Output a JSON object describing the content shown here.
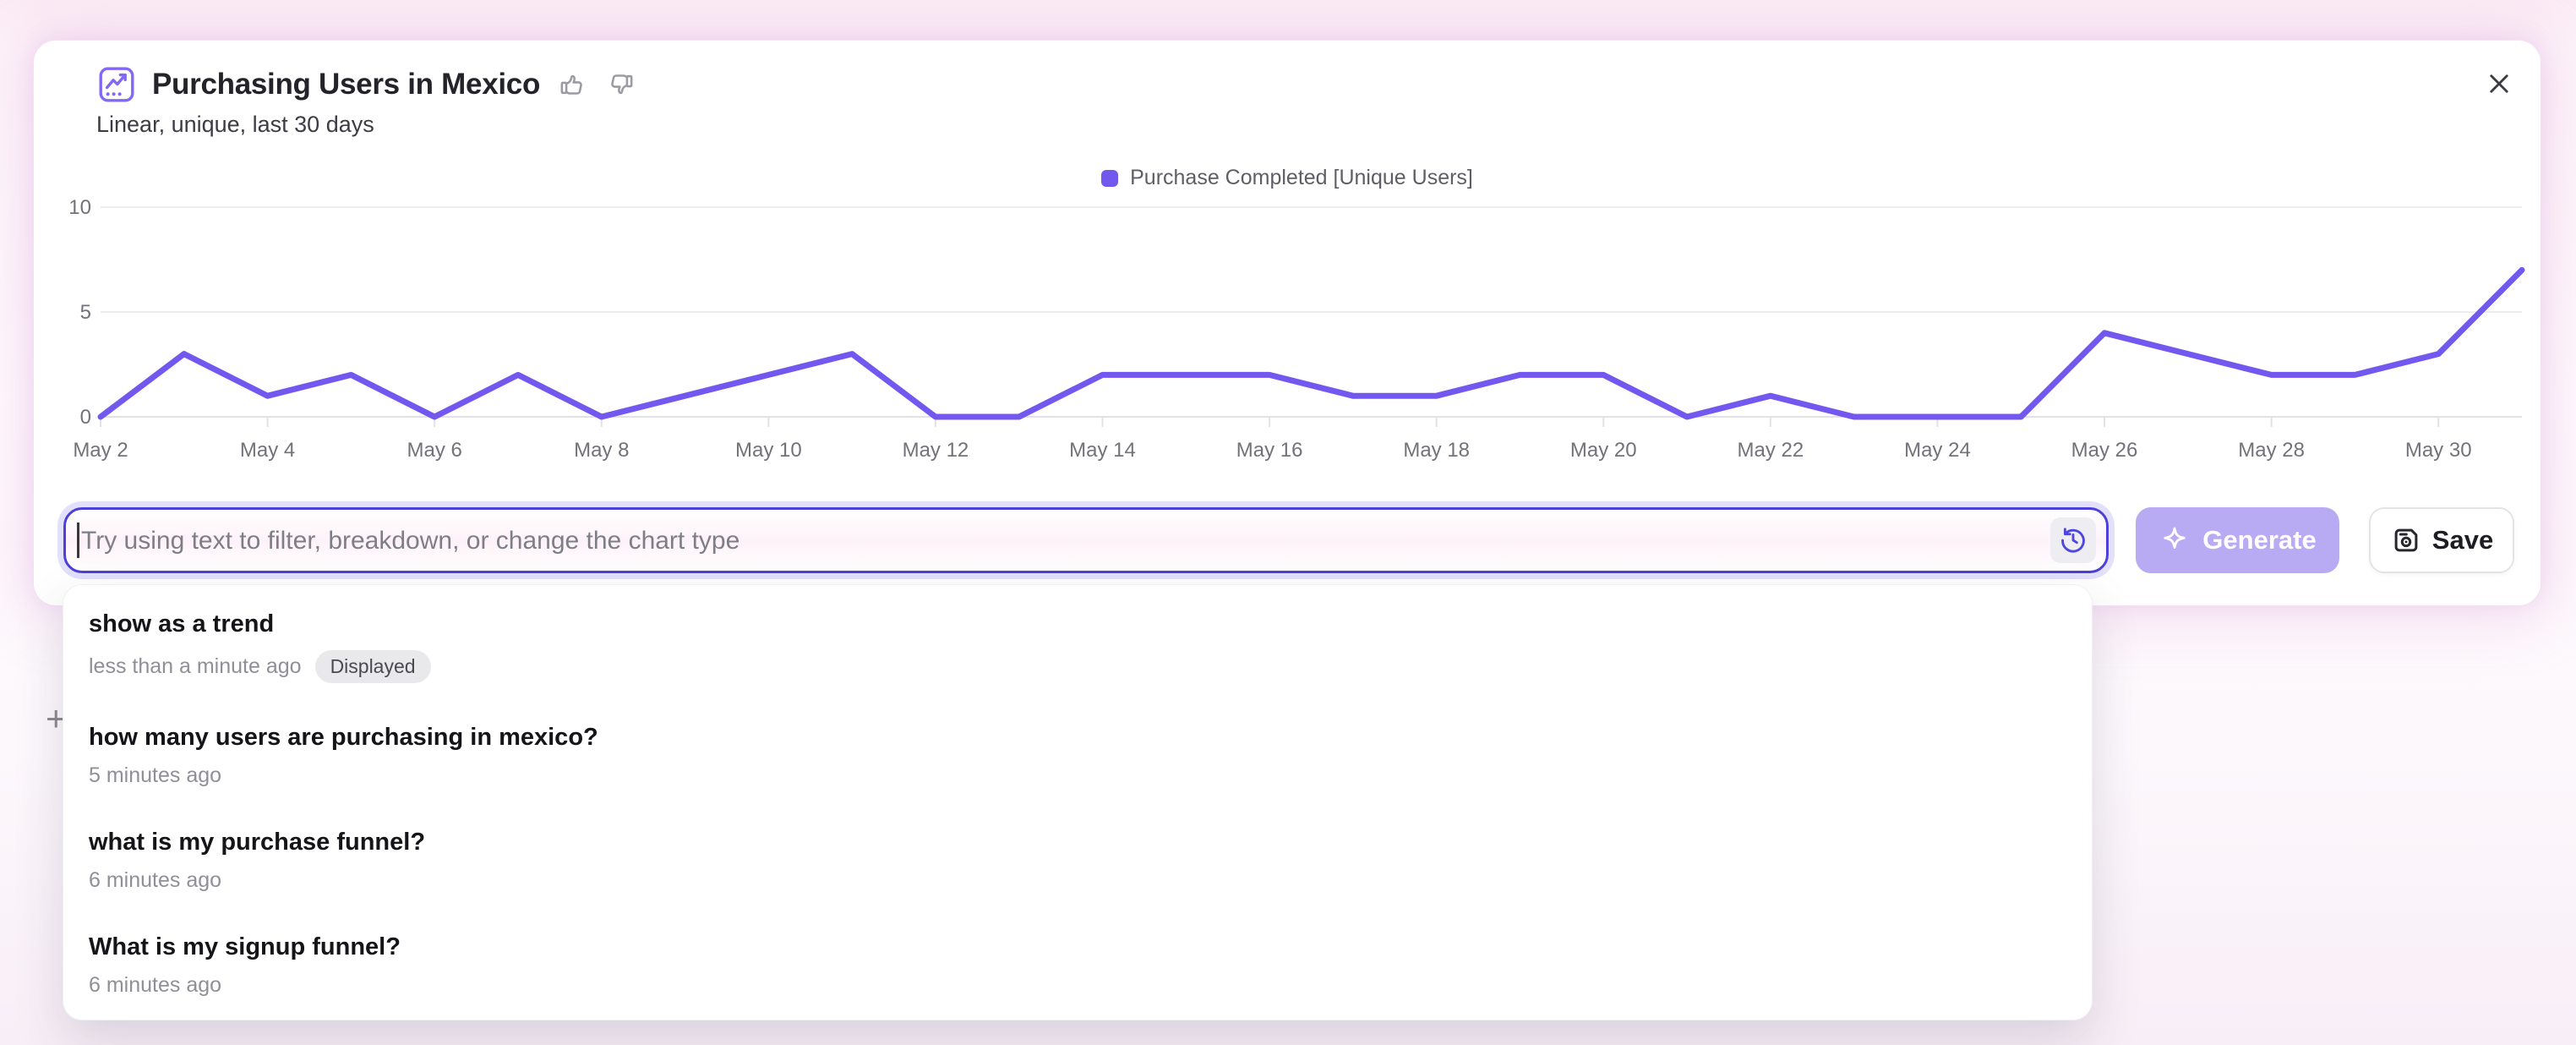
{
  "header": {
    "title": "Purchasing Users in Mexico",
    "subtitle": "Linear, unique, last 30 days"
  },
  "legend": {
    "label": "Purchase Completed [Unique Users]",
    "color": "#7358f0"
  },
  "chart_data": {
    "type": "line",
    "title": "Purchasing Users in Mexico",
    "x": [
      "May 2",
      "May 3",
      "May 4",
      "May 5",
      "May 6",
      "May 7",
      "May 8",
      "May 9",
      "May 10",
      "May 11",
      "May 12",
      "May 13",
      "May 14",
      "May 15",
      "May 16",
      "May 17",
      "May 18",
      "May 19",
      "May 20",
      "May 21",
      "May 22",
      "May 23",
      "May 24",
      "May 25",
      "May 26",
      "May 27",
      "May 28",
      "May 29",
      "May 30",
      "May 31"
    ],
    "series": [
      {
        "name": "Purchase Completed [Unique Users]",
        "values": [
          0,
          3,
          1,
          2,
          0,
          2,
          0,
          1,
          2,
          3,
          0,
          0,
          2,
          2,
          2,
          1,
          1,
          2,
          2,
          0,
          1,
          0,
          0,
          0,
          4,
          3,
          2,
          2,
          3,
          7
        ]
      }
    ],
    "xlabel": "",
    "ylabel": "",
    "y_ticks": [
      0,
      5,
      10
    ],
    "ylim": [
      0,
      10
    ],
    "x_tick_every": 2,
    "grid": "horizontal",
    "legend_position": "top-center",
    "line_color": "#7358f0",
    "axis_label_color": "#72727a",
    "gridline_color": "#ededf0",
    "axis_line_color": "#e2e2e6"
  },
  "prompt": {
    "value": "",
    "placeholder": "Try using text to filter, breakdown, or change the chart type"
  },
  "actions": {
    "generate": "Generate",
    "save": "Save"
  },
  "history_dropdown": {
    "items": [
      {
        "query": "show as a trend",
        "time": "less than a minute ago",
        "badge": "Displayed"
      },
      {
        "query": "how many users are purchasing in mexico?",
        "time": "5 minutes ago",
        "badge": null
      },
      {
        "query": "what is my purchase funnel?",
        "time": "6 minutes ago",
        "badge": null
      },
      {
        "query": "What is my signup funnel?",
        "time": "6 minutes ago",
        "badge": null
      }
    ]
  },
  "misc": {
    "plus_glyph": "+"
  },
  "icons": {
    "insights-chart-icon": "line-chart-in-rounded-square",
    "thumbs-up-icon": "thumb-up-outline",
    "thumbs-down-icon": "thumb-down-outline",
    "close-icon": "x-mark",
    "history-icon": "clock-with-restore-arrow",
    "sparkle-icon": "four-point-star-outline",
    "save-icon": "floppy-disk-with-circle"
  }
}
